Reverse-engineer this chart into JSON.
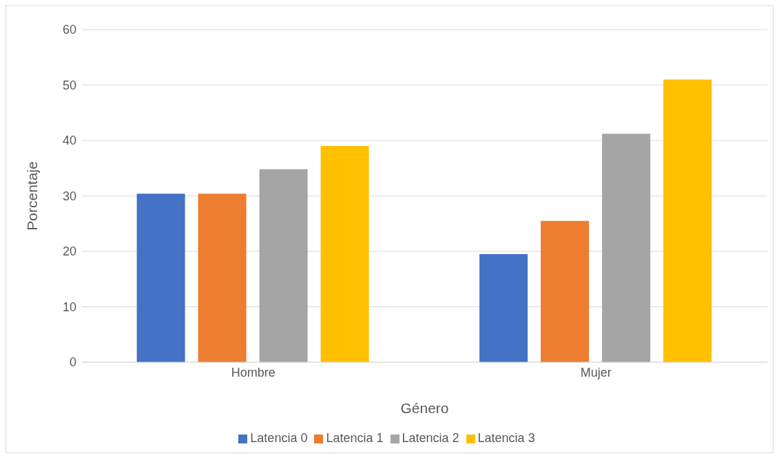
{
  "chart_data": {
    "type": "bar",
    "xlabel": "Género",
    "ylabel": "Porcentaje",
    "categories": [
      "Hombre",
      "Mujer"
    ],
    "series": [
      {
        "name": "Latencia 0",
        "color": "#4472c4",
        "values": [
          30.4,
          19.5
        ]
      },
      {
        "name": "Latencia 1",
        "color": "#ed7d31",
        "values": [
          30.4,
          25.5
        ]
      },
      {
        "name": "Latencia 2",
        "color": "#a5a5a5",
        "values": [
          34.8,
          41.2
        ]
      },
      {
        "name": "Latencia 3",
        "color": "#ffc000",
        "values": [
          39.0,
          51.0
        ]
      }
    ],
    "ylim": [
      0,
      60
    ],
    "yticks": [
      0,
      10,
      20,
      30,
      40,
      50,
      60
    ],
    "grid": "y",
    "legend": "bottom"
  }
}
